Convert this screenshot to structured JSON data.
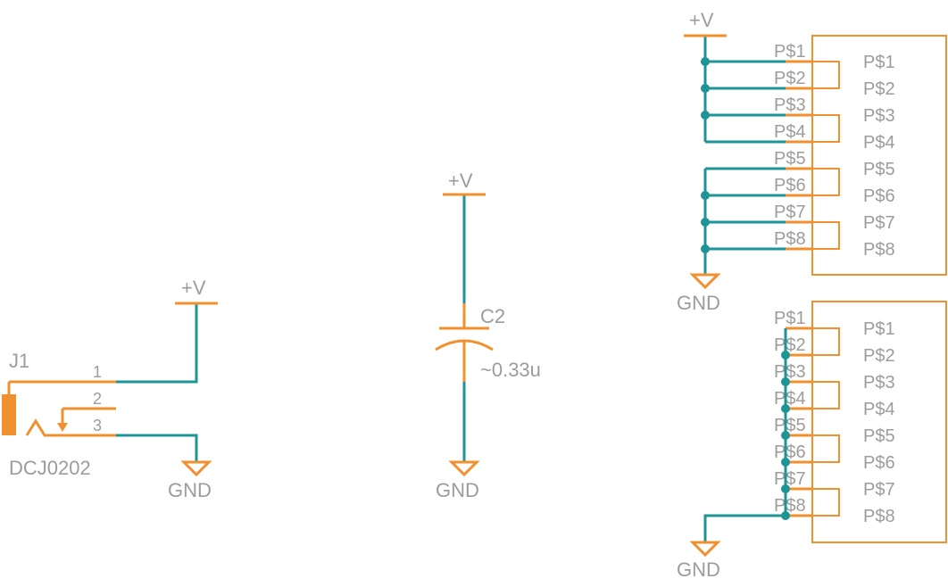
{
  "colors": {
    "component": "#f0902f",
    "wire": "#1e9496",
    "junction": "#1e9496",
    "text": "#9c9c9c",
    "background": "#ffffff"
  },
  "supply": {
    "pos_label": "+V",
    "gnd_label": "GND"
  },
  "jack": {
    "name": "J1",
    "value": "DCJ0202",
    "pins": [
      "1",
      "2",
      "3"
    ]
  },
  "capacitor": {
    "name": "C2",
    "value": "~0.33u"
  },
  "connector_top": {
    "outer_pins": [
      "P$1",
      "P$2",
      "P$3",
      "P$4",
      "P$5",
      "P$6",
      "P$7",
      "P$8"
    ],
    "inner_pins": [
      "P$1",
      "P$2",
      "P$3",
      "P$4",
      "P$5",
      "P$6",
      "P$7",
      "P$8"
    ]
  },
  "connector_bottom": {
    "outer_pins": [
      "P$1",
      "P$2",
      "P$3",
      "P$4",
      "P$5",
      "P$6",
      "P$7",
      "P$8"
    ],
    "inner_pins": [
      "P$1",
      "P$2",
      "P$3",
      "P$4",
      "P$5",
      "P$6",
      "P$7",
      "P$8"
    ]
  }
}
